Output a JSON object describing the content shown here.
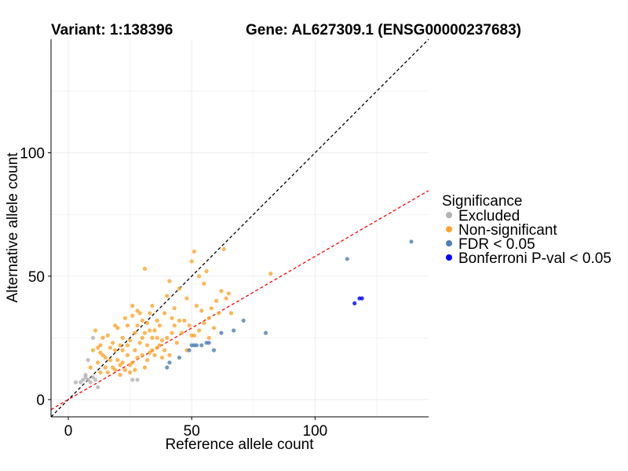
{
  "chart_data": {
    "type": "scatter",
    "title_left": "Variant: 1:138396",
    "title_right": "Gene: AL627309.1 (ENSG00000237683)",
    "xlabel": "Reference allele count",
    "ylabel": "Alternative allele count",
    "xlim": [
      -7,
      146
    ],
    "ylim": [
      -7,
      146
    ],
    "xticks": [
      0,
      50,
      100
    ],
    "yticks": [
      0,
      50,
      100
    ],
    "grid": true,
    "legend": {
      "title": "Significance",
      "position": "right"
    },
    "reference_lines": [
      {
        "name": "y = x",
        "slope": 1.0,
        "intercept": 0,
        "color": "#000000",
        "dash": true
      },
      {
        "name": "fit",
        "slope": 0.58,
        "intercept": 0,
        "color": "#ff0000",
        "dash": true
      }
    ],
    "series": [
      {
        "name": "Excluded",
        "color": "#b3b3b3",
        "points": [
          [
            3,
            7
          ],
          [
            5,
            7
          ],
          [
            6,
            8
          ],
          [
            7,
            9
          ],
          [
            7,
            10
          ],
          [
            8,
            8
          ],
          [
            8,
            16
          ],
          [
            9,
            7
          ],
          [
            10,
            9
          ],
          [
            10,
            25
          ],
          [
            11,
            8
          ],
          [
            12,
            5
          ],
          [
            26,
            8
          ],
          [
            28,
            8
          ]
        ]
      },
      {
        "name": "Non-significant",
        "color": "#ffa42b",
        "points": [
          [
            9,
            13
          ],
          [
            10,
            20
          ],
          [
            11,
            28
          ],
          [
            12,
            15
          ],
          [
            12,
            21
          ],
          [
            13,
            11
          ],
          [
            13,
            19
          ],
          [
            13,
            22
          ],
          [
            14,
            18
          ],
          [
            14,
            25
          ],
          [
            15,
            13
          ],
          [
            15,
            17
          ],
          [
            16,
            26
          ],
          [
            16,
            11
          ],
          [
            17,
            21
          ],
          [
            17,
            16
          ],
          [
            18,
            13
          ],
          [
            18,
            23
          ],
          [
            19,
            12
          ],
          [
            19,
            30
          ],
          [
            19,
            20
          ],
          [
            20,
            29
          ],
          [
            20,
            16
          ],
          [
            21,
            22
          ],
          [
            21,
            14
          ],
          [
            21,
            10
          ],
          [
            22,
            15
          ],
          [
            22,
            20
          ],
          [
            22,
            25
          ],
          [
            23,
            33
          ],
          [
            23,
            12
          ],
          [
            24,
            18
          ],
          [
            24,
            22
          ],
          [
            24,
            30
          ],
          [
            25,
            24
          ],
          [
            25,
            14
          ],
          [
            25,
            11
          ],
          [
            26,
            34
          ],
          [
            26,
            38
          ],
          [
            26,
            15
          ],
          [
            27,
            20
          ],
          [
            27,
            27
          ],
          [
            27,
            12
          ],
          [
            28,
            36
          ],
          [
            28,
            30
          ],
          [
            28,
            17
          ],
          [
            29,
            23
          ],
          [
            29,
            35
          ],
          [
            30,
            32
          ],
          [
            30,
            18
          ],
          [
            30,
            25
          ],
          [
            31,
            53
          ],
          [
            31,
            13
          ],
          [
            31,
            27
          ],
          [
            32,
            31
          ],
          [
            32,
            22
          ],
          [
            32,
            16
          ],
          [
            33,
            28
          ],
          [
            33,
            35
          ],
          [
            33,
            19
          ],
          [
            34,
            38
          ],
          [
            34,
            20
          ],
          [
            34,
            25
          ],
          [
            35,
            28
          ],
          [
            35,
            18
          ],
          [
            36,
            32
          ],
          [
            36,
            25
          ],
          [
            36,
            21
          ],
          [
            37,
            30
          ],
          [
            37,
            22
          ],
          [
            38,
            17
          ],
          [
            38,
            24
          ],
          [
            39,
            35
          ],
          [
            39,
            20
          ],
          [
            40,
            42
          ],
          [
            40,
            25
          ],
          [
            41,
            48
          ],
          [
            41,
            18
          ],
          [
            42,
            33
          ],
          [
            42,
            27
          ],
          [
            43,
            37
          ],
          [
            43,
            30
          ],
          [
            44,
            23
          ],
          [
            45,
            32
          ],
          [
            45,
            45
          ],
          [
            46,
            27
          ],
          [
            47,
            32
          ],
          [
            48,
            41
          ],
          [
            48,
            20
          ],
          [
            49,
            30
          ],
          [
            50,
            26
          ],
          [
            50,
            56
          ],
          [
            51,
            60
          ],
          [
            51,
            26
          ],
          [
            52,
            38
          ],
          [
            53,
            50
          ],
          [
            53,
            28
          ],
          [
            54,
            36
          ],
          [
            55,
            47
          ],
          [
            55,
            31
          ],
          [
            56,
            52
          ],
          [
            57,
            33
          ],
          [
            57,
            25
          ],
          [
            58,
            37
          ],
          [
            59,
            29
          ],
          [
            60,
            40
          ],
          [
            61,
            35
          ],
          [
            62,
            44
          ],
          [
            63,
            61
          ],
          [
            64,
            41
          ],
          [
            65,
            43
          ],
          [
            66,
            35
          ],
          [
            82,
            51
          ]
        ]
      },
      {
        "name": "FDR < 0.05",
        "color": "#4f7fb5",
        "points": [
          [
            40,
            13
          ],
          [
            41,
            15
          ],
          [
            45,
            17
          ],
          [
            49,
            20
          ],
          [
            50,
            22
          ],
          [
            51,
            22
          ],
          [
            52,
            22
          ],
          [
            54,
            22
          ],
          [
            56,
            23
          ],
          [
            57,
            23
          ],
          [
            59,
            20
          ],
          [
            62,
            27
          ],
          [
            67,
            28
          ],
          [
            71,
            32
          ],
          [
            80,
            27
          ],
          [
            113,
            57
          ],
          [
            139,
            64
          ]
        ]
      },
      {
        "name": "Bonferroni P-val < 0.05",
        "color": "#0000ff",
        "points": [
          [
            116,
            39
          ],
          [
            118,
            41
          ],
          [
            119,
            41
          ]
        ]
      }
    ]
  }
}
